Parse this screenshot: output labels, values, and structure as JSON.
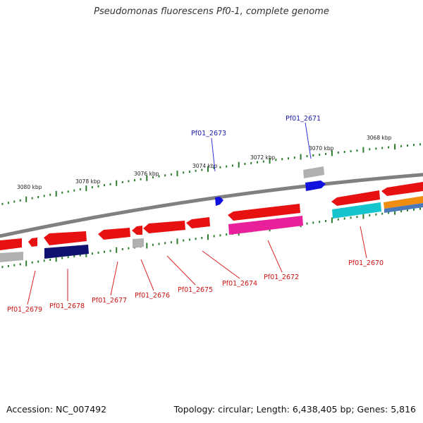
{
  "title": "Pseudomonas fluorescens Pf0-1, complete genome",
  "footer": {
    "accession": "Accession: NC_007492",
    "summary": "Topology: circular; Length: 6,438,405 bp; Genes: 5,816"
  },
  "colors": {
    "backbone": "#808080",
    "tick": "#2e7d2e",
    "label_forward": "#1a1aaa",
    "label_reverse": "#cc1111",
    "leader_forward": "#3333dd",
    "leader_reverse": "#dd2222",
    "red": "#e81111",
    "grey": "#b0b0b0",
    "blue": "#1111dd",
    "navy": "#101070",
    "magenta": "#e8219a",
    "cyan": "#15c4cc",
    "orange": "#f08c10",
    "steelblue": "#4a78b8"
  },
  "scale": {
    "labels": [
      "3080 kbp",
      "3078 kbp",
      "3076 kbp",
      "3074 kbp",
      "3072 kbp",
      "3070 kbp",
      "3068 kbp"
    ]
  },
  "genes": {
    "forward": [
      {
        "label": "Pf01_2673"
      },
      {
        "label": "Pf01_2671"
      }
    ],
    "reverse": [
      {
        "label": "Pf01_2679"
      },
      {
        "label": "Pf01_2678"
      },
      {
        "label": "Pf01_2677"
      },
      {
        "label": "Pf01_2676"
      },
      {
        "label": "Pf01_2675"
      },
      {
        "label": "Pf01_2674"
      },
      {
        "label": "Pf01_2672"
      },
      {
        "label": "Pf01_2670"
      }
    ]
  }
}
